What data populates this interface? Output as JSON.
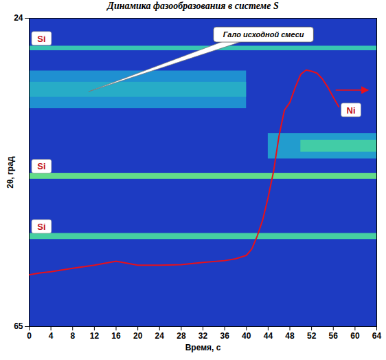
{
  "chart_data": {
    "type": "heatmap",
    "title": "Динамика фазообразования в системе S",
    "x_label": "Время, с",
    "y_label": "2θ, град",
    "xlim": [
      0,
      64
    ],
    "xticks": [
      0,
      4,
      8,
      12,
      16,
      20,
      24,
      28,
      32,
      36,
      40,
      44,
      48,
      52,
      56,
      60,
      64
    ],
    "ylim": [
      24,
      65
    ],
    "yticks": [
      24,
      65
    ],
    "y2lim": [
      0,
      100
    ],
    "color_range": [
      0,
      1
    ],
    "cells": [
      {
        "t": [
          0,
          40
        ],
        "two_theta": [
          31.0,
          36.0
        ],
        "intensity": 0.3
      },
      {
        "t": [
          0,
          40
        ],
        "two_theta": [
          32.5,
          34.5
        ],
        "intensity": 0.42
      },
      {
        "t": [
          0,
          64
        ],
        "two_theta": [
          27.7,
          28.3
        ],
        "intensity": 0.55
      },
      {
        "t": [
          0,
          64
        ],
        "two_theta": [
          44.6,
          45.4
        ],
        "intensity": 0.72
      },
      {
        "t": [
          0,
          64
        ],
        "two_theta": [
          52.6,
          53.4
        ],
        "intensity": 0.62
      },
      {
        "t": [
          44,
          64
        ],
        "two_theta": [
          39.3,
          42.7
        ],
        "intensity": 0.35
      },
      {
        "t": [
          50,
          64
        ],
        "two_theta": [
          40.2,
          41.8
        ],
        "intensity": 0.6
      }
    ],
    "peaks": [
      {
        "label": "Si",
        "two_theta": 28.0
      },
      {
        "label": "Si",
        "two_theta": 45.0
      },
      {
        "label": "Si",
        "two_theta": 53.0
      },
      {
        "label": "Ni",
        "two_theta": 41.0
      }
    ],
    "annotations": [
      "Гало исходной смеси"
    ],
    "x": [
      0,
      2,
      4,
      8,
      12,
      16,
      20,
      24,
      28,
      32,
      36,
      38,
      40,
      41,
      42,
      43,
      44,
      45,
      46,
      47,
      48,
      49,
      50,
      51,
      52,
      53,
      54,
      55,
      56,
      57
    ],
    "series": [
      {
        "color": "#e8101a",
        "axis": "y2",
        "values": [
          16.8,
          17.4,
          17.8,
          18.9,
          19.9,
          21.2,
          19.9,
          19.9,
          20.1,
          20.8,
          21.4,
          22.0,
          23.1,
          25.2,
          29.4,
          34.6,
          41.9,
          50.3,
          61.8,
          70.2,
          72.7,
          77.6,
          81.8,
          83.2,
          82.8,
          82.2,
          80.3,
          77.6,
          74.4,
          71.3
        ]
      }
    ]
  }
}
